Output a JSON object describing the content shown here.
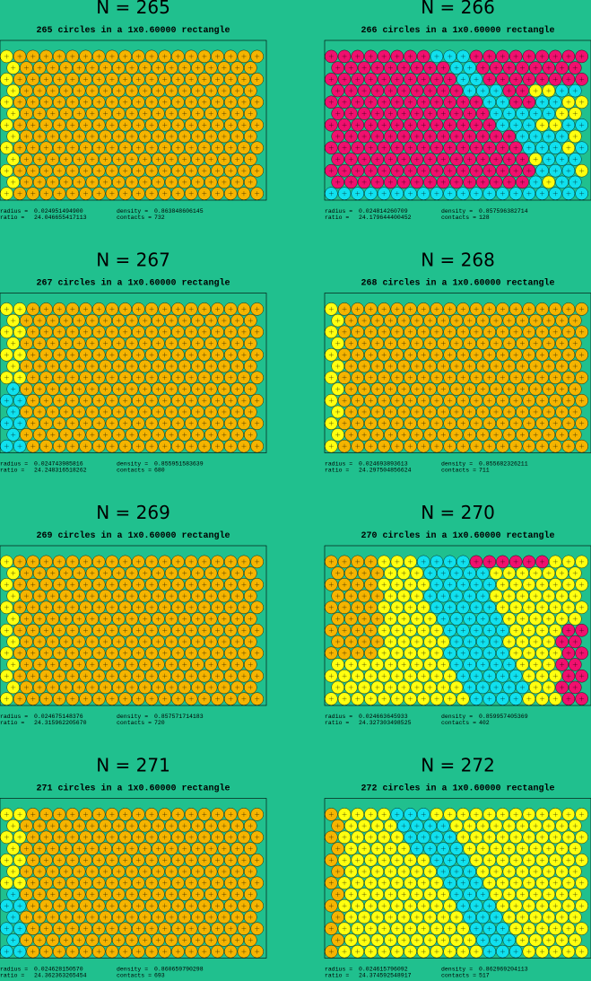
{
  "panels": [
    {
      "title": "N = 265",
      "subtitle": "265 circles in a 1x0.60000 rectangle",
      "stats": [
        {
          "label": "radius =",
          "value": "0.024951494900"
        },
        {
          "label": "density =",
          "value": "0.863848606145"
        },
        {
          "label": "ratio =",
          "value": "24.046655417113"
        },
        {
          "label": "contacts =",
          "value": "732"
        }
      ]
    },
    {
      "title": "N = 266",
      "subtitle": "266 circles in a 1x0.60000 rectangle",
      "stats": [
        {
          "label": "radius =",
          "value": "0.024814260709"
        },
        {
          "label": "density =",
          "value": "0.857596382714"
        },
        {
          "label": "ratio =",
          "value": "24.179644400452"
        },
        {
          "label": "contacts =",
          "value": "128"
        }
      ]
    },
    {
      "title": "N = 267",
      "subtitle": "267 circles in a 1x0.60000 rectangle",
      "stats": [
        {
          "label": "radius =",
          "value": "0.024743985816"
        },
        {
          "label": "density =",
          "value": "0.855951583639"
        },
        {
          "label": "ratio =",
          "value": "24.248316518262"
        },
        {
          "label": "contacts =",
          "value": "680"
        }
      ]
    },
    {
      "title": "N = 268",
      "subtitle": "268 circles in a 1x0.60000 rectangle",
      "stats": [
        {
          "label": "radius =",
          "value": "0.024693893613"
        },
        {
          "label": "density =",
          "value": "0.855682326211"
        },
        {
          "label": "ratio =",
          "value": "24.297504856624"
        },
        {
          "label": "contacts =",
          "value": "711"
        }
      ]
    },
    {
      "title": "N = 269",
      "subtitle": "269 circles in a 1x0.60000 rectangle",
      "stats": [
        {
          "label": "radius =",
          "value": "0.024675148376"
        },
        {
          "label": "density =",
          "value": "0.857571714183"
        },
        {
          "label": "ratio =",
          "value": "24.315962205670"
        },
        {
          "label": "contacts =",
          "value": "720"
        }
      ]
    },
    {
      "title": "N = 270",
      "subtitle": "270 circles in a 1x0.60000 rectangle",
      "stats": [
        {
          "label": "radius =",
          "value": "0.024663645933"
        },
        {
          "label": "density =",
          "value": "0.859957405369"
        },
        {
          "label": "ratio =",
          "value": "24.327303498525"
        },
        {
          "label": "contacts =",
          "value": "402"
        }
      ]
    },
    {
      "title": "N = 271",
      "subtitle": "271 circles in a 1x0.60000 rectangle",
      "stats": [
        {
          "label": "radius =",
          "value": "0.024628150570"
        },
        {
          "label": "density =",
          "value": "0.860659790298"
        },
        {
          "label": "ratio =",
          "value": "24.362363265454"
        },
        {
          "label": "contacts =",
          "value": "693"
        }
      ]
    },
    {
      "title": "N = 272",
      "subtitle": "272 circles in a 1x0.60000 rectangle",
      "stats": [
        {
          "label": "radius =",
          "value": "0.024615796092"
        },
        {
          "label": "density =",
          "value": "0.862969204113"
        },
        {
          "label": "ratio =",
          "value": "24.374592548917"
        },
        {
          "label": "contacts =",
          "value": "517"
        }
      ]
    }
  ]
}
